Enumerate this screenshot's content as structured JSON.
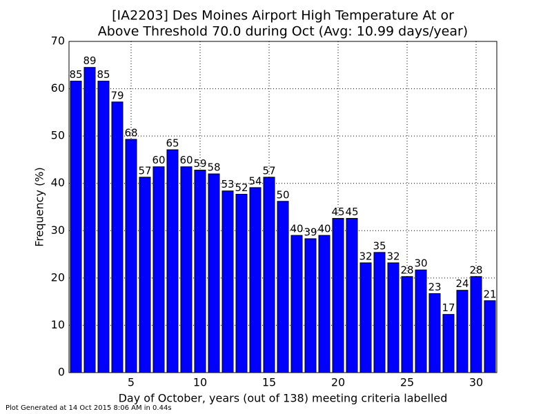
{
  "chart_data": {
    "type": "bar",
    "title": [
      "[IA2203] Des Moines Airport High Temperature At or",
      "Above Threshold 70.0 during Oct (Avg: 10.99 days/year)"
    ],
    "x_label": "Day of October, years (out of 138) meeting criteria labelled",
    "y_label": "Frequency (%)",
    "footer": "Plot Generated at 14 Oct 2015 8:06 AM in 0.44s",
    "x": [
      1,
      2,
      3,
      4,
      5,
      6,
      7,
      8,
      9,
      10,
      11,
      12,
      13,
      14,
      15,
      16,
      17,
      18,
      19,
      20,
      21,
      22,
      23,
      24,
      25,
      26,
      27,
      28,
      29,
      30,
      31
    ],
    "values": [
      61.6,
      64.5,
      61.6,
      57.2,
      49.3,
      41.3,
      43.5,
      47.1,
      43.5,
      42.8,
      42.0,
      38.4,
      37.7,
      39.1,
      41.3,
      36.2,
      29.0,
      28.3,
      29.0,
      32.6,
      32.6,
      23.2,
      25.4,
      23.2,
      20.3,
      21.7,
      16.7,
      12.3,
      17.4,
      20.3,
      15.2
    ],
    "years": [
      85,
      89,
      85,
      79,
      68,
      57,
      60,
      65,
      60,
      59,
      58,
      53,
      52,
      54,
      57,
      50,
      40,
      39,
      40,
      45,
      45,
      32,
      35,
      32,
      28,
      30,
      23,
      17,
      24,
      28,
      21
    ],
    "color": "#0000ff",
    "xlim": [
      0.5,
      31.5
    ],
    "xticks": [
      5,
      10,
      15,
      20,
      25,
      30
    ],
    "ylim": [
      0,
      70
    ],
    "yticks": [
      0,
      10,
      20,
      30,
      40,
      50,
      60,
      70
    ],
    "grid": true
  }
}
